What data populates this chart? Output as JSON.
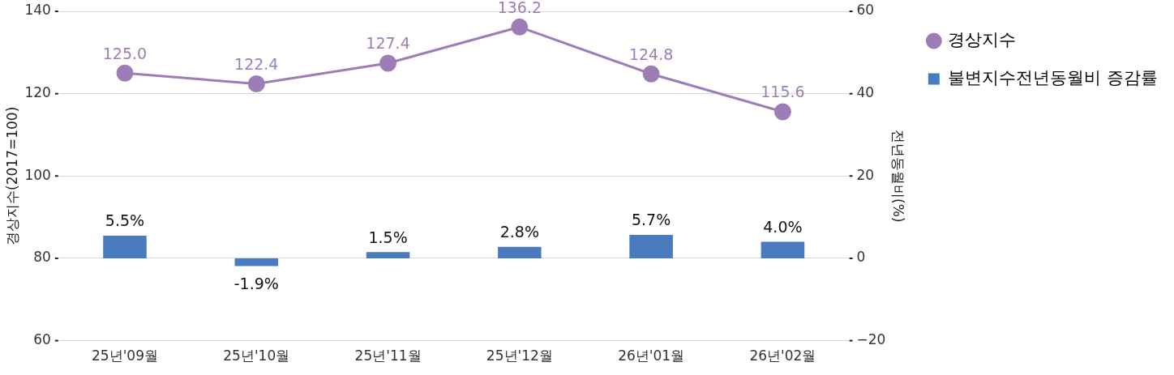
{
  "chart_data": {
    "type": "bar",
    "categories": [
      "25년'09월",
      "25년'10월",
      "25년'11월",
      "25년'12월",
      "26년'01월",
      "26년'02월"
    ],
    "series": [
      {
        "name": "경상지수",
        "type": "line",
        "color": "#9d7db5",
        "values": [
          125.0,
          122.4,
          127.4,
          136.2,
          124.8,
          115.6
        ],
        "value_labels": [
          "125.0",
          "122.4",
          "127.4",
          "136.2",
          "124.8",
          "115.6"
        ]
      },
      {
        "name": "불변지수전년동월비 증감률",
        "axis": "y2",
        "color": "#4a7bbf",
        "values": [
          5.5,
          -1.9,
          1.5,
          2.8,
          5.7,
          4.0
        ],
        "value_labels": [
          "5.5%",
          "-1.9%",
          "1.5%",
          "2.8%",
          "5.7%",
          "4.0%"
        ]
      }
    ],
    "ylabel": "경상지수(2017=100)",
    "y2label": "전년동월비(%)",
    "ylim": [
      60,
      140
    ],
    "yticks": [
      60,
      80,
      100,
      120,
      140
    ],
    "y2lim": [
      -20,
      60
    ],
    "y2ticks": [
      -20,
      0,
      20,
      40,
      60
    ],
    "grid": "y",
    "legend": "top right",
    "marker": "circle",
    "line_style": "solid"
  }
}
